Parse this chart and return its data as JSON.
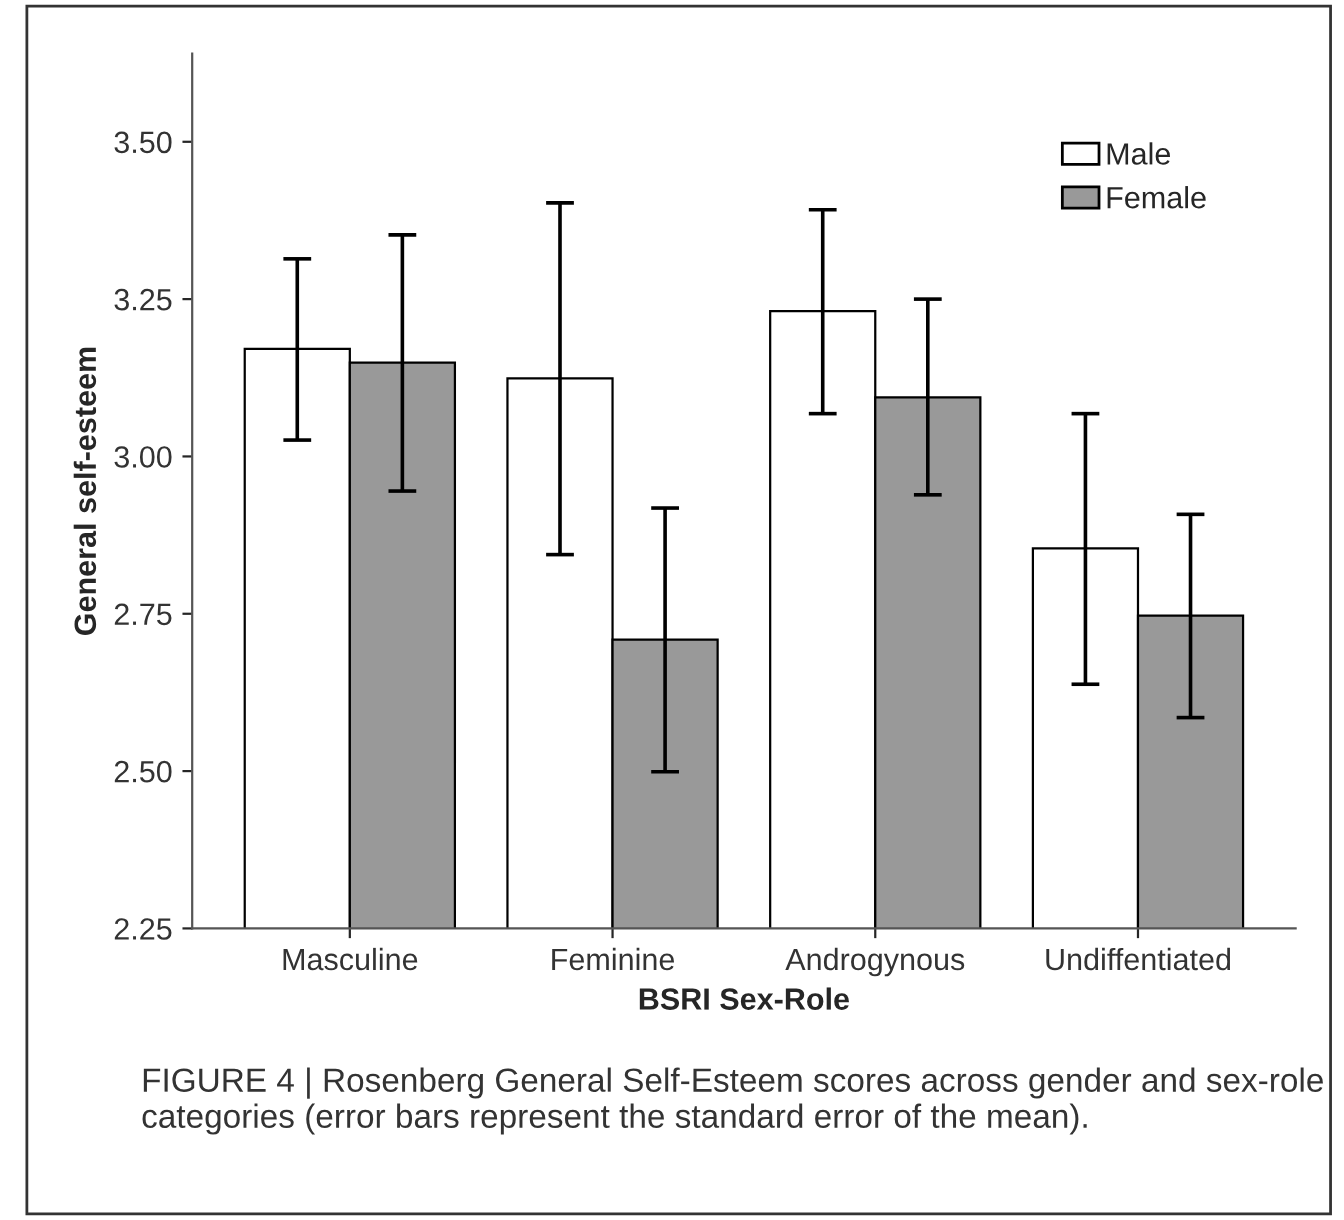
{
  "chart_data": {
    "type": "bar",
    "xlabel": "BSRI Sex-Role",
    "ylabel": "General self-esteem",
    "categories": [
      "Masculine",
      "Feminine",
      "Androgynous",
      "Undiffentiated"
    ],
    "series": [
      {
        "name": "Male",
        "color": "#ffffff",
        "values": [
          3.171,
          3.124,
          3.231,
          2.854
        ],
        "errors": [
          [
            3.026,
            3.314
          ],
          [
            2.844,
            3.403
          ],
          [
            3.068,
            3.392
          ],
          [
            2.638,
            3.068
          ]
        ]
      },
      {
        "name": "Female",
        "color": "#999999",
        "values": [
          3.149,
          2.709,
          3.094,
          2.747
        ],
        "errors": [
          [
            2.945,
            3.352
          ],
          [
            2.499,
            2.918
          ],
          [
            2.939,
            3.25
          ],
          [
            2.585,
            2.908
          ]
        ]
      }
    ],
    "ylim": [
      2.25,
      3.64
    ],
    "yticks": [
      {
        "value": 2.25,
        "label": "2.25"
      },
      {
        "value": 2.5,
        "label": "2.50"
      },
      {
        "value": 2.75,
        "label": "2.75"
      },
      {
        "value": 3.0,
        "label": "3.00"
      },
      {
        "value": 3.25,
        "label": "3.25"
      },
      {
        "value": 3.5,
        "label": "3.50"
      }
    ],
    "grid": false,
    "legend": "top right",
    "annotations": [
      "FIGURE 4 | Rosenberg General Self-Esteem scores across gender and sex-role categories (error bars represent the standard error of the mean)."
    ]
  }
}
